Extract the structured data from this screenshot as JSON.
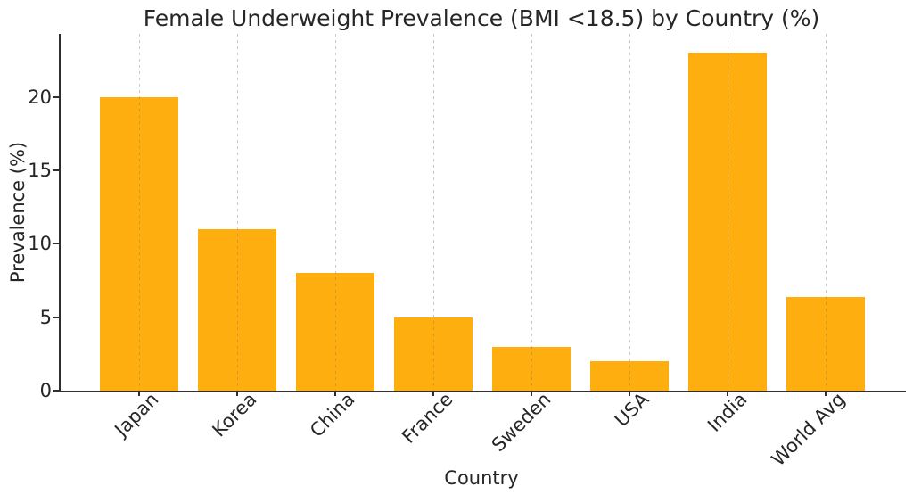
{
  "chart_data": {
    "type": "bar",
    "title": "Female Underweight Prevalence (BMI <18.5) by Country (%)",
    "xlabel": "Country",
    "ylabel": "Prevalence (%)",
    "categories": [
      "Japan",
      "Korea",
      "China",
      "France",
      "Sweden",
      "USA",
      "India",
      "World Avg"
    ],
    "values": [
      20,
      11,
      8,
      5,
      3,
      2,
      23,
      6.4
    ],
    "yticks": [
      0,
      5,
      10,
      15,
      20
    ],
    "ylim": [
      0,
      24.3
    ],
    "bar_color": "#FFAE10",
    "axis_color": "#2F2F2F",
    "text_color": "#262626",
    "gridline_style": "vertical-dashed-gray",
    "legend": "none"
  }
}
